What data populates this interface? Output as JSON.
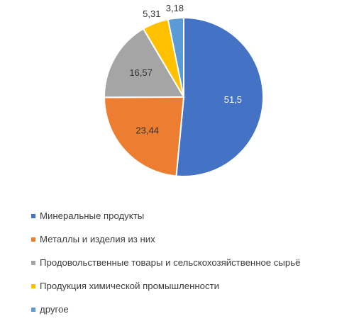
{
  "chart_data": {
    "type": "pie",
    "categories": [
      "Минеральные продукты",
      "Металлы и изделия из них",
      "Продовольственные товары и сельскохозяйственное сырьё",
      "Продукция химической промышленности",
      "другое"
    ],
    "values": [
      51.5,
      23.44,
      16.57,
      5.31,
      3.18
    ],
    "value_labels": [
      "51,5",
      "23,44",
      "16,57",
      "5,31",
      "3,18"
    ],
    "colors": [
      "#4472c4",
      "#ed7d31",
      "#a5a5a5",
      "#ffc000",
      "#5b9bd5"
    ],
    "start": "12 o'clock",
    "direction": "clockwise",
    "legend_position": "bottom",
    "title": ""
  }
}
